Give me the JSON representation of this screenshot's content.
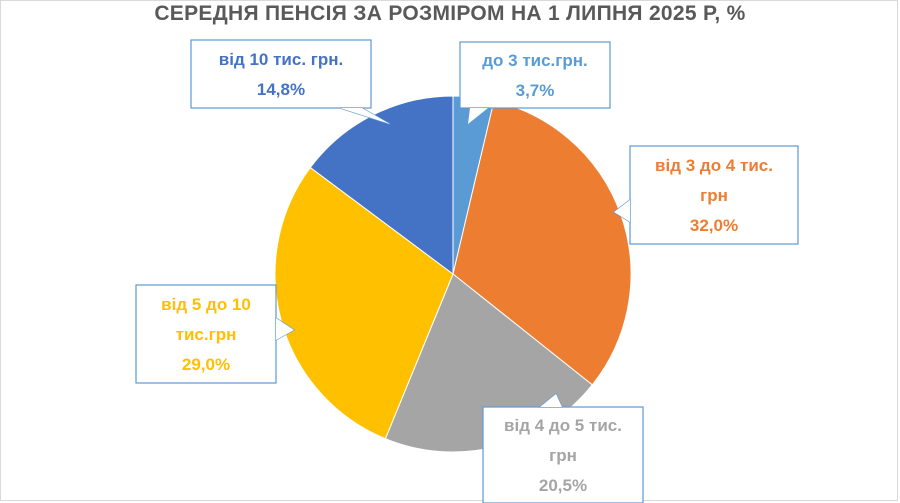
{
  "chart_data": {
    "type": "pie",
    "title": "СЕРЕДНЯ ПЕНСІЯ ЗА РОЗМІРОМ НА 1 ЛИПНЯ 2025 Р, %",
    "slices": [
      {
        "label_lines": [
          "до 3 тис.грн."
        ],
        "value": 3.7,
        "value_label": "3,7%",
        "color": "#5B9BD5"
      },
      {
        "label_lines": [
          "від 3 до 4 тис.",
          "грн"
        ],
        "value": 32.0,
        "value_label": "32,0%",
        "color": "#ED7D31"
      },
      {
        "label_lines": [
          "від 4 до 5 тис.",
          "грн"
        ],
        "value": 20.5,
        "value_label": "20,5%",
        "color": "#A5A5A5"
      },
      {
        "label_lines": [
          "від 5 до 10",
          "тис.грн"
        ],
        "value": 29.0,
        "value_label": "29,0%",
        "color": "#FFC000"
      },
      {
        "label_lines": [
          "від 10 тис. грн."
        ],
        "value": 14.8,
        "value_label": "14,8%",
        "color": "#4472C4"
      }
    ],
    "start_angle_deg": 0,
    "direction": "clockwise",
    "legend": "none",
    "data_labels": "callouts"
  }
}
